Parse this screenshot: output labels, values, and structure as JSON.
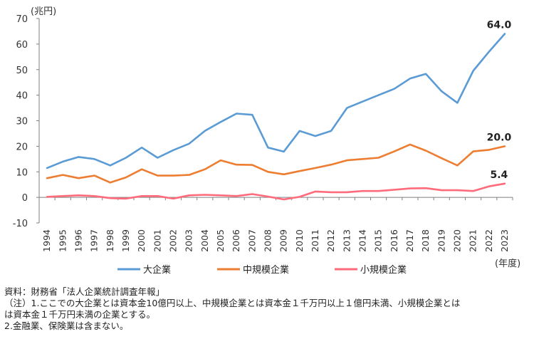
{
  "chart_data": {
    "type": "line",
    "unit_label": "(兆円)",
    "x_axis_label": "(年度)",
    "ylim": [
      -10,
      70
    ],
    "yticks": [
      -10,
      0,
      10,
      20,
      30,
      40,
      50,
      60,
      70
    ],
    "grid": false,
    "legend_position": "bottom",
    "categories": [
      "1994",
      "1995",
      "1996",
      "1997",
      "1998",
      "1999",
      "2000",
      "2001",
      "2002",
      "2003",
      "2004",
      "2005",
      "2006",
      "2007",
      "2008",
      "2009",
      "2010",
      "2011",
      "2012",
      "2013",
      "2014",
      "2015",
      "2016",
      "2017",
      "2018",
      "2019",
      "2020",
      "2021",
      "2022",
      "2023"
    ],
    "series": [
      {
        "name": "大企業",
        "color": "#5B9BD5",
        "end_label": "64.0",
        "values": [
          11.5,
          14,
          15.8,
          15,
          12.5,
          15.5,
          19.5,
          15.5,
          18.5,
          21,
          26,
          29.5,
          32.8,
          32.3,
          19.5,
          17.9,
          26,
          24,
          26,
          35,
          37.5,
          40,
          42.5,
          46.5,
          48.3,
          41.5,
          37,
          49.5,
          57,
          64
        ]
      },
      {
        "name": "中規模企業",
        "color": "#ED7D31",
        "end_label": "20.0",
        "values": [
          7.5,
          8.8,
          7.5,
          8.5,
          5.8,
          7.8,
          11,
          8.5,
          8.5,
          8.8,
          11,
          14.5,
          12.8,
          12.7,
          10,
          9,
          10.3,
          11.5,
          12.8,
          14.5,
          15,
          15.5,
          18,
          20.7,
          18.3,
          15.3,
          12.5,
          18,
          18.6,
          20
        ]
      },
      {
        "name": "小規模企業",
        "color": "#FF6B7A",
        "end_label": "5.4",
        "values": [
          0.2,
          0.5,
          0.8,
          0.5,
          -0.3,
          -0.5,
          0.5,
          0.5,
          -0.5,
          0.8,
          1,
          0.8,
          0.5,
          1.3,
          0.3,
          -0.8,
          0.2,
          2.3,
          2,
          2,
          2.5,
          2.5,
          3,
          3.5,
          3.6,
          2.8,
          2.8,
          2.5,
          4.3,
          5.4
        ]
      }
    ]
  },
  "notes": {
    "source": "資料：財務省「法人企業統計調査年報」",
    "note1a": "（注）1.ここでの大企業とは資本金10億円以上、中規模企業とは資本金１千万円以上１億円未満、小規模企業とは",
    "note1b": "は資本金１千万円未満の企業とする。",
    "note2": "2.金融業、保険業は含まない。"
  }
}
